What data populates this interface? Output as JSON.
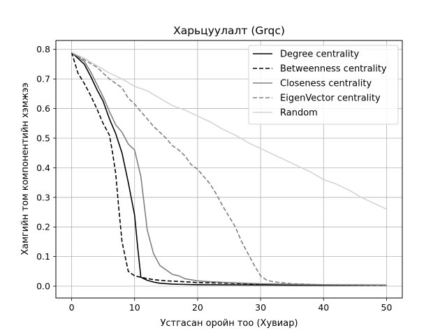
{
  "chart_data": {
    "type": "line",
    "title": "Харьцуулалт (Grqc)",
    "xlabel": "Устгасан оройн тоо (Хувиар)",
    "ylabel": "Хамгийн том компонентийн хэмжээ",
    "xlim": [
      -2.5,
      52.5
    ],
    "ylim": [
      -0.04,
      0.83
    ],
    "x_ticks": [
      0,
      10,
      20,
      30,
      40,
      50
    ],
    "y_ticks": [
      0.0,
      0.1,
      0.2,
      0.3,
      0.4,
      0.5,
      0.6,
      0.7,
      0.8
    ],
    "grid": true,
    "legend_position": "top-right",
    "series": [
      {
        "name": "Degree centrality",
        "color": "#000000",
        "dash": "solid",
        "points": [
          [
            0,
            0.79
          ],
          [
            2,
            0.75
          ],
          [
            3,
            0.71
          ],
          [
            4,
            0.665
          ],
          [
            5,
            0.625
          ],
          [
            6,
            0.565
          ],
          [
            7,
            0.515
          ],
          [
            8,
            0.45
          ],
          [
            9,
            0.35
          ],
          [
            10,
            0.24
          ],
          [
            10.5,
            0.13
          ],
          [
            11,
            0.03
          ],
          [
            12,
            0.02
          ],
          [
            13,
            0.014
          ],
          [
            14,
            0.01
          ],
          [
            16,
            0.007
          ],
          [
            20,
            0.005
          ],
          [
            30,
            0.004
          ],
          [
            40,
            0.003
          ],
          [
            50,
            0.003
          ]
        ]
      },
      {
        "name": "Betweenness centrality",
        "color": "#000000",
        "dash": "dashed",
        "points": [
          [
            0,
            0.79
          ],
          [
            1,
            0.72
          ],
          [
            2,
            0.685
          ],
          [
            3,
            0.645
          ],
          [
            4,
            0.6
          ],
          [
            5,
            0.55
          ],
          [
            6,
            0.51
          ],
          [
            6.5,
            0.45
          ],
          [
            7,
            0.38
          ],
          [
            7.5,
            0.26
          ],
          [
            8,
            0.15
          ],
          [
            9,
            0.05
          ],
          [
            10,
            0.035
          ],
          [
            11,
            0.03
          ],
          [
            13,
            0.022
          ],
          [
            15,
            0.018
          ],
          [
            18,
            0.015
          ],
          [
            20,
            0.012
          ],
          [
            25,
            0.01
          ],
          [
            30,
            0.007
          ],
          [
            40,
            0.004
          ],
          [
            50,
            0.003
          ]
        ]
      },
      {
        "name": "Closeness centrality",
        "color": "#808080",
        "dash": "solid",
        "points": [
          [
            0,
            0.79
          ],
          [
            2,
            0.76
          ],
          [
            3,
            0.725
          ],
          [
            5,
            0.64
          ],
          [
            6,
            0.59
          ],
          [
            7,
            0.545
          ],
          [
            8,
            0.52
          ],
          [
            9,
            0.48
          ],
          [
            10,
            0.46
          ],
          [
            11,
            0.37
          ],
          [
            12,
            0.19
          ],
          [
            13,
            0.11
          ],
          [
            14,
            0.07
          ],
          [
            15,
            0.055
          ],
          [
            16,
            0.04
          ],
          [
            17,
            0.035
          ],
          [
            18,
            0.025
          ],
          [
            20,
            0.018
          ],
          [
            22,
            0.015
          ],
          [
            25,
            0.012
          ],
          [
            30,
            0.008
          ],
          [
            40,
            0.005
          ],
          [
            50,
            0.004
          ]
        ]
      },
      {
        "name": "EigenVector centrality",
        "color": "#808080",
        "dash": "dashed",
        "points": [
          [
            0,
            0.79
          ],
          [
            2,
            0.765
          ],
          [
            4,
            0.74
          ],
          [
            5,
            0.72
          ],
          [
            6,
            0.7
          ],
          [
            7,
            0.685
          ],
          [
            8,
            0.67
          ],
          [
            9,
            0.635
          ],
          [
            10,
            0.615
          ],
          [
            11,
            0.59
          ],
          [
            12,
            0.565
          ],
          [
            13,
            0.54
          ],
          [
            14,
            0.52
          ],
          [
            15,
            0.5
          ],
          [
            16,
            0.475
          ],
          [
            17,
            0.46
          ],
          [
            18,
            0.44
          ],
          [
            19,
            0.41
          ],
          [
            20,
            0.395
          ],
          [
            21,
            0.37
          ],
          [
            22,
            0.345
          ],
          [
            23,
            0.31
          ],
          [
            24,
            0.27
          ],
          [
            25,
            0.235
          ],
          [
            26,
            0.2
          ],
          [
            27,
            0.15
          ],
          [
            28,
            0.11
          ],
          [
            29,
            0.07
          ],
          [
            30,
            0.035
          ],
          [
            31,
            0.02
          ],
          [
            32,
            0.015
          ],
          [
            35,
            0.008
          ],
          [
            40,
            0.005
          ],
          [
            50,
            0.003
          ]
        ]
      },
      {
        "name": "Random",
        "color": "#d3d3d3",
        "dash": "solid",
        "points": [
          [
            0,
            0.79
          ],
          [
            2,
            0.77
          ],
          [
            4,
            0.745
          ],
          [
            6,
            0.72
          ],
          [
            8,
            0.7
          ],
          [
            10,
            0.675
          ],
          [
            12,
            0.66
          ],
          [
            14,
            0.635
          ],
          [
            16,
            0.61
          ],
          [
            18,
            0.595
          ],
          [
            20,
            0.575
          ],
          [
            22,
            0.555
          ],
          [
            24,
            0.53
          ],
          [
            26,
            0.51
          ],
          [
            28,
            0.485
          ],
          [
            30,
            0.465
          ],
          [
            32,
            0.445
          ],
          [
            34,
            0.425
          ],
          [
            36,
            0.405
          ],
          [
            38,
            0.385
          ],
          [
            40,
            0.36
          ],
          [
            42,
            0.345
          ],
          [
            44,
            0.325
          ],
          [
            46,
            0.3
          ],
          [
            48,
            0.28
          ],
          [
            50,
            0.26
          ]
        ]
      }
    ]
  }
}
